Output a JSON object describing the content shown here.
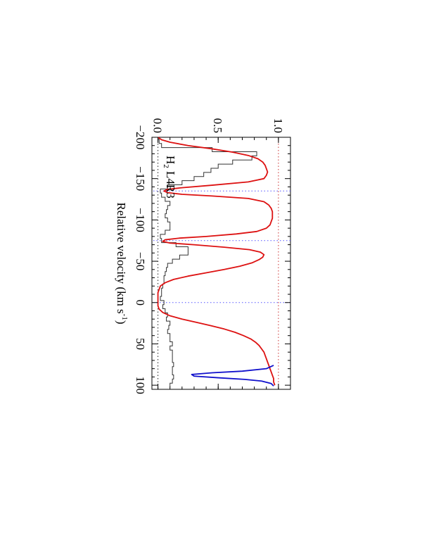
{
  "chart_data": {
    "type": "line",
    "rotation": "90deg clockwise (landscape figure shown rotated)",
    "xlabel_main": "Relative velocity (km s",
    "xlabel_sup": "-1",
    "xlabel_close": ")",
    "x_ticks": [
      -200,
      -150,
      -100,
      -50,
      0,
      50,
      100
    ],
    "x_tick_labels": [
      "−200",
      "−150",
      "−100",
      "−50",
      "0",
      "50",
      "100"
    ],
    "y_ticks": [
      0.0,
      0.5,
      1.0
    ],
    "y_tick_labels": [
      "0.0",
      "0.5",
      "1.0"
    ],
    "xlim": [
      -200,
      105
    ],
    "ylim": [
      -0.05,
      1.1
    ],
    "annotation": {
      "species": "H",
      "subscript": "2",
      "line": " L4R3"
    },
    "markers": {
      "component_velocities": [
        -135,
        -75,
        0
      ],
      "continuum_level": 1.0,
      "zero_level": 0.0,
      "marker_colors": {
        "vertical": "#5555ff",
        "continuum": "#cc3333",
        "zero": "#222222"
      }
    },
    "series": [
      {
        "style": "histogram",
        "color": "#333333",
        "x": [
          -200,
          -195,
          -190,
          -185,
          -180,
          -175,
          -170,
          -165,
          -160,
          -155,
          -150,
          -145,
          -140,
          -135,
          -130,
          -125,
          -120,
          -115,
          -110,
          -105,
          -100,
          -95,
          -90,
          -85,
          -80,
          -75,
          -70,
          -65,
          -60,
          -55,
          -50,
          -45,
          -40,
          -35,
          -30,
          -25,
          -20,
          -15,
          -10,
          -5,
          0,
          5,
          10,
          15,
          20,
          25,
          30,
          35,
          40,
          45,
          50,
          55,
          60,
          65,
          70,
          75,
          80,
          85,
          90,
          95,
          100
        ],
        "y": [
          0.0,
          0.01,
          0.03,
          0.45,
          0.82,
          0.78,
          0.62,
          0.5,
          0.44,
          0.38,
          0.3,
          0.2,
          0.08,
          0.02,
          0.03,
          0.06,
          0.1,
          0.08,
          0.07,
          0.06,
          0.08,
          0.1,
          0.1,
          0.06,
          0.02,
          0.03,
          0.15,
          0.25,
          0.25,
          0.18,
          0.12,
          0.08,
          0.07,
          0.06,
          0.05,
          0.05,
          0.04,
          0.03,
          0.03,
          0.02,
          0.05,
          0.04,
          0.06,
          0.08,
          0.07,
          0.1,
          0.09,
          0.08,
          0.1,
          0.1,
          0.12,
          0.1,
          0.12,
          0.12,
          0.12,
          0.13,
          0.12,
          0.12,
          0.13,
          0.12,
          0.1
        ]
      },
      {
        "style": "line",
        "color": "#dd1111",
        "x": [
          -200,
          -197,
          -194,
          -190,
          -186,
          -182,
          -178,
          -174,
          -170,
          -166,
          -162,
          -158,
          -154,
          -150,
          -146,
          -142,
          -139,
          -137,
          -135,
          -133,
          -131,
          -129,
          -126,
          -122,
          -118,
          -114,
          -110,
          -106,
          -102,
          -98,
          -94,
          -90,
          -86,
          -83,
          -80,
          -78,
          -76,
          -74,
          -72,
          -70,
          -67,
          -64,
          -61,
          -58,
          -55,
          -52,
          -48,
          -44,
          -40,
          -36,
          -32,
          -28,
          -24,
          -20,
          -16,
          -12,
          -8,
          -4,
          0,
          4,
          8,
          12,
          16,
          20,
          24,
          28,
          32,
          36,
          40,
          44,
          48,
          52,
          56,
          60,
          64,
          68,
          72,
          76,
          80,
          84,
          88,
          92,
          96,
          100
        ],
        "y": [
          0.0,
          0.03,
          0.1,
          0.25,
          0.45,
          0.62,
          0.75,
          0.83,
          0.87,
          0.89,
          0.9,
          0.91,
          0.9,
          0.88,
          0.75,
          0.45,
          0.2,
          0.08,
          0.05,
          0.08,
          0.2,
          0.45,
          0.75,
          0.88,
          0.92,
          0.94,
          0.95,
          0.95,
          0.95,
          0.94,
          0.93,
          0.9,
          0.82,
          0.65,
          0.4,
          0.18,
          0.06,
          0.04,
          0.1,
          0.3,
          0.55,
          0.76,
          0.85,
          0.88,
          0.87,
          0.84,
          0.78,
          0.68,
          0.55,
          0.4,
          0.25,
          0.13,
          0.06,
          0.02,
          0.01,
          0.0,
          0.0,
          0.0,
          0.0,
          0.0,
          0.01,
          0.04,
          0.1,
          0.2,
          0.32,
          0.44,
          0.55,
          0.64,
          0.71,
          0.77,
          0.81,
          0.84,
          0.86,
          0.88,
          0.89,
          0.9,
          0.91,
          0.92,
          0.93,
          0.94,
          0.95,
          0.96,
          0.96,
          0.97
        ]
      },
      {
        "style": "line",
        "color": "#1111cc",
        "x": [
          76,
          80,
          83,
          85,
          87,
          89,
          91,
          93,
          95,
          98,
          101
        ],
        "y": [
          0.96,
          0.9,
          0.7,
          0.45,
          0.28,
          0.3,
          0.5,
          0.72,
          0.86,
          0.94,
          0.96
        ]
      }
    ]
  }
}
